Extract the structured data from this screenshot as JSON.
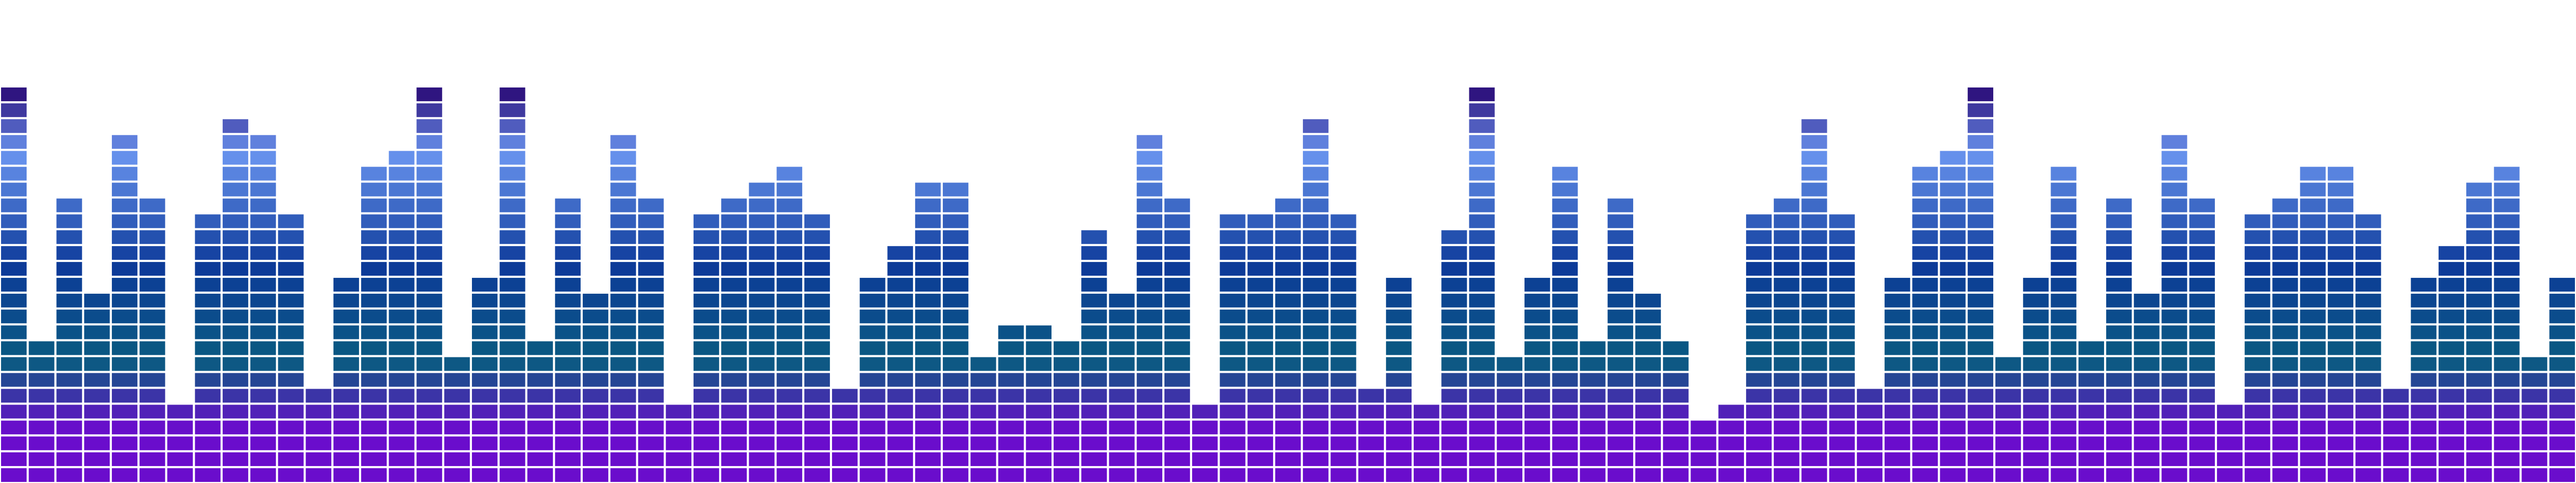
{
  "equalizer": {
    "segments_max": 25,
    "levels": [
      25,
      9,
      18,
      12,
      22,
      18,
      5,
      17,
      23,
      22,
      17,
      6,
      13,
      20,
      21,
      25,
      8,
      13,
      25,
      9,
      18,
      12,
      22,
      18,
      5,
      17,
      18,
      19,
      20,
      17,
      6,
      13,
      15,
      19,
      19,
      8,
      10,
      10,
      9,
      16,
      12,
      22,
      18,
      5,
      17,
      17,
      18,
      23,
      17,
      6,
      13,
      5,
      16,
      25,
      8,
      13,
      20,
      9,
      18,
      12,
      9,
      4,
      5,
      17,
      18,
      23,
      17,
      6,
      13,
      20,
      21,
      25,
      8,
      13,
      20,
      9,
      18,
      12,
      22,
      18,
      5,
      17,
      18,
      20,
      20,
      17,
      6,
      13,
      15,
      19,
      20,
      8,
      13
    ],
    "colors": {
      "bottom": "#6a0dcc",
      "low_mid": "#0a5c80",
      "mid": "#0d3a99",
      "upper": "#6a95f0",
      "top": "#2f1580",
      "gap": "#ffffff"
    }
  }
}
